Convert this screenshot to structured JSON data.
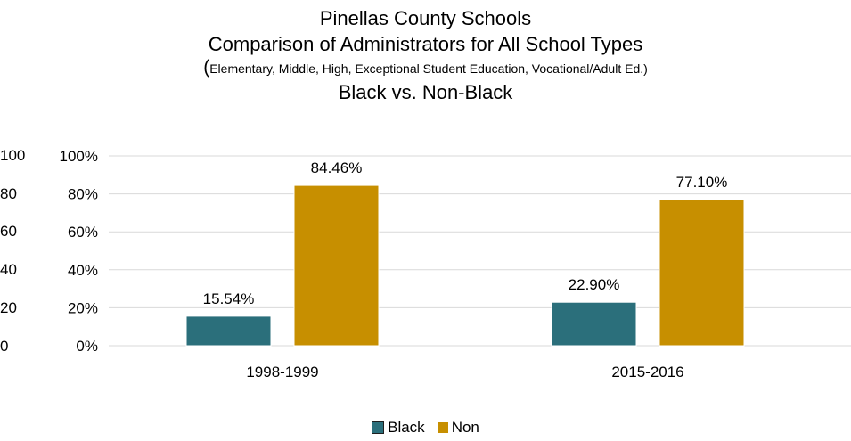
{
  "title": {
    "line1": "Pinellas County Schools",
    "line2": "Comparison of Administrators for All School Types",
    "paren_open": "(",
    "line3": "Elementary, Middle, High, Exceptional Student Education, Vocational/Adult Ed.)",
    "line4": "Black vs. Non-Black"
  },
  "ghost_axis_labels": [
    "100",
    "80",
    "60",
    "40",
    "20",
    "0"
  ],
  "chart_data": {
    "type": "bar",
    "categories": [
      "1998-1999",
      "2015-2016"
    ],
    "series": [
      {
        "name": "Black",
        "values": [
          15.54,
          22.9
        ],
        "labels": [
          "15.54%",
          "22.90%"
        ],
        "color": "#2b6f7b"
      },
      {
        "name": "Non",
        "values": [
          84.46,
          77.1
        ],
        "labels": [
          "84.46%",
          "77.10%"
        ],
        "color": "#c78f00"
      }
    ],
    "ylim": [
      0,
      100
    ],
    "yticks": [
      0,
      20,
      40,
      60,
      80,
      100
    ],
    "ytick_labels": [
      "0%",
      "20%",
      "40%",
      "60%",
      "80%",
      "100%"
    ],
    "grid": true,
    "legend": "bottom-center",
    "xlabel": "",
    "ylabel": ""
  },
  "colors": {
    "black_series": "#2b6f7b",
    "non_series": "#c78f00",
    "gridline": "#d9d9d9"
  }
}
